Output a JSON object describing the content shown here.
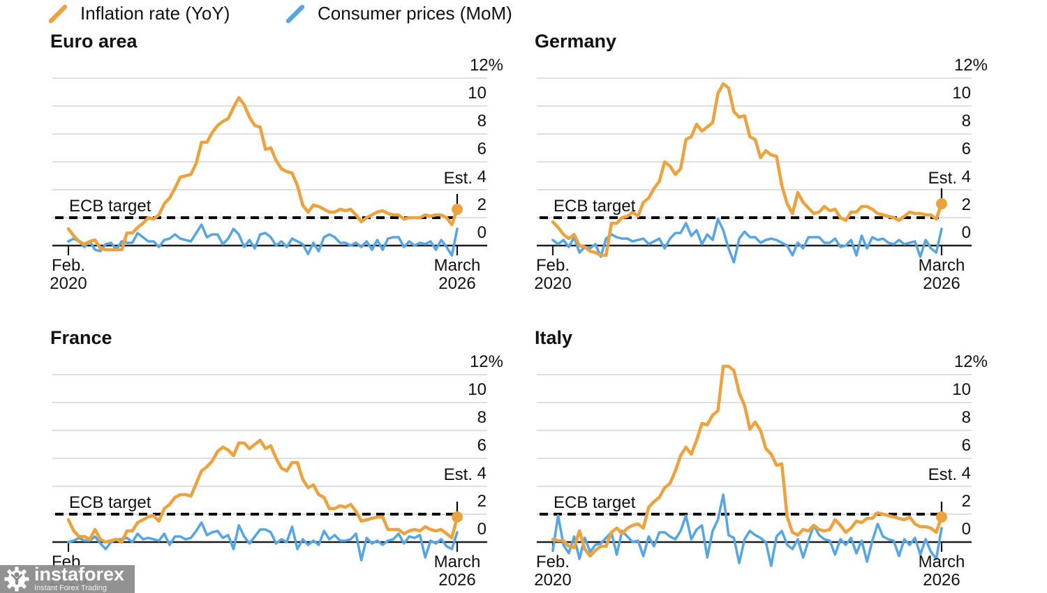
{
  "legend": {
    "items": [
      {
        "label": "Inflation rate (YoY)",
        "color": "#EBA33F"
      },
      {
        "label": "Consumer prices (MoM)",
        "color": "#57A6E1"
      }
    ]
  },
  "colors": {
    "inflation_yoy": "#EBA33F",
    "consumer_mom": "#57A6E1",
    "gridline": "#C9C9C9",
    "axis": "#1A1A1A",
    "target_dash": "#000000"
  },
  "axis": {
    "y_tick_labels": [
      "12%",
      "10",
      "8",
      "6",
      "4",
      "2",
      "0"
    ],
    "x_start_label": [
      "Feb.",
      "2020"
    ],
    "x_end_label": [
      "March",
      "2026"
    ],
    "target_label": "ECB target",
    "est_label": "Est."
  },
  "watermark": {
    "brand": "instaforex",
    "tagline": "Instant Forex Trading"
  },
  "chart_data": [
    {
      "type": "line",
      "id": "euro-area",
      "title": "Euro area",
      "x_range": [
        "Feb. 2020",
        "March 2026"
      ],
      "ylim": [
        0,
        12
      ],
      "grid": true,
      "target_value": 2,
      "estimate": {
        "label": "Est.",
        "value": 2.6
      },
      "series": [
        {
          "name": "Inflation rate (YoY)",
          "color": "#EBA33F",
          "values": [
            1.2,
            0.7,
            0.3,
            0.1,
            0.3,
            0.4,
            -0.2,
            -0.3,
            -0.3,
            -0.3,
            -0.3,
            0.9,
            0.9,
            1.3,
            1.6,
            2.0,
            1.9,
            2.2,
            3.0,
            3.4,
            4.1,
            4.9,
            5.0,
            5.1,
            5.9,
            7.4,
            7.4,
            8.1,
            8.6,
            8.9,
            9.1,
            9.9,
            10.6,
            10.1,
            9.2,
            8.6,
            8.5,
            6.9,
            7.0,
            6.1,
            5.5,
            5.3,
            5.2,
            4.3,
            2.9,
            2.4,
            2.9,
            2.8,
            2.6,
            2.4,
            2.4,
            2.6,
            2.5,
            2.6,
            2.2,
            1.7,
            2.0,
            2.2,
            2.4,
            2.5,
            2.3,
            2.2,
            2.2,
            1.9,
            2.0,
            2.0,
            2.0,
            2.2,
            2.1,
            2.2,
            2.2,
            2.0,
            1.5
          ]
        },
        {
          "name": "Consumer prices (MoM)",
          "color": "#57A6E1",
          "values": [
            0.3,
            0.5,
            0.3,
            -0.1,
            0.3,
            -0.3,
            -0.4,
            0.1,
            0.2,
            -0.3,
            0.3,
            0.2,
            0.2,
            0.9,
            0.6,
            0.3,
            0.3,
            -0.1,
            0.4,
            0.5,
            0.8,
            0.5,
            0.4,
            0.3,
            0.9,
            1.5,
            0.6,
            0.8,
            0.8,
            0.1,
            0.5,
            1.2,
            0.8,
            -0.1,
            0.4,
            -0.2,
            0.8,
            0.9,
            0.6,
            0.0,
            0.3,
            -0.1,
            0.5,
            0.3,
            0.1,
            -0.6,
            0.2,
            -0.4,
            0.6,
            0.8,
            0.6,
            0.2,
            0.2,
            0.0,
            0.2,
            -0.1,
            0.3,
            -0.3,
            0.4,
            -0.3,
            0.5,
            0.6,
            0.6,
            -0.1,
            0.3,
            0.0,
            0.2,
            0.1,
            0.3,
            -0.3,
            0.4,
            -0.1,
            -0.7,
            1.2
          ]
        }
      ]
    },
    {
      "type": "line",
      "id": "germany",
      "title": "Germany",
      "x_range": [
        "Feb. 2020",
        "March 2026"
      ],
      "ylim": [
        0,
        12
      ],
      "grid": true,
      "target_value": 2,
      "estimate": {
        "label": "Est.",
        "value": 3.0
      },
      "series": [
        {
          "name": "Inflation rate (YoY)",
          "color": "#EBA33F",
          "values": [
            1.7,
            1.3,
            0.8,
            0.5,
            0.8,
            0.0,
            -0.1,
            -0.4,
            -0.5,
            -0.7,
            -0.7,
            1.6,
            1.6,
            2.0,
            2.1,
            2.4,
            2.1,
            3.1,
            3.4,
            4.1,
            4.6,
            6.0,
            5.7,
            5.1,
            5.5,
            7.6,
            7.8,
            8.7,
            8.2,
            8.5,
            8.8,
            10.9,
            11.6,
            11.3,
            9.6,
            9.2,
            9.3,
            7.8,
            7.6,
            6.3,
            6.8,
            6.5,
            6.4,
            4.3,
            3.0,
            2.3,
            3.8,
            3.1,
            2.7,
            2.3,
            2.4,
            2.8,
            2.5,
            2.6,
            2.0,
            1.8,
            2.4,
            2.4,
            2.8,
            2.8,
            2.6,
            2.3,
            2.2,
            2.1,
            2.0,
            1.8,
            2.1,
            2.4,
            2.3,
            2.3,
            2.2,
            2.2,
            1.9
          ]
        },
        {
          "name": "Consumer prices (MoM)",
          "color": "#57A6E1",
          "values": [
            0.4,
            0.1,
            0.4,
            -0.1,
            0.6,
            -0.5,
            -0.1,
            -0.2,
            0.1,
            -0.8,
            0.5,
            0.8,
            0.6,
            0.5,
            0.5,
            0.3,
            0.4,
            0.5,
            0.1,
            0.3,
            0.5,
            -0.2,
            0.5,
            0.9,
            0.9,
            1.6,
            0.7,
            1.1,
            0.1,
            0.8,
            0.4,
            1.9,
            1.1,
            -0.2,
            -1.2,
            0.5,
            1.0,
            0.6,
            0.6,
            0.2,
            0.4,
            0.5,
            0.4,
            0.2,
            0.0,
            -0.7,
            0.2,
            -0.2,
            0.6,
            0.6,
            0.6,
            0.2,
            0.2,
            0.5,
            -0.1,
            0.0,
            0.4,
            -0.7,
            0.7,
            -0.2,
            0.6,
            0.4,
            0.5,
            0.2,
            0.1,
            0.4,
            0.1,
            0.2,
            0.3,
            -0.8,
            0.4,
            -0.2,
            -0.5,
            1.2
          ]
        }
      ]
    },
    {
      "type": "line",
      "id": "france",
      "title": "France",
      "x_range": [
        "Feb. 2020",
        "March 2026"
      ],
      "ylim": [
        0,
        12
      ],
      "grid": true,
      "target_value": 2,
      "estimate": {
        "label": "Est.",
        "value": 1.8
      },
      "series": [
        {
          "name": "Inflation rate (YoY)",
          "color": "#EBA33F",
          "values": [
            1.6,
            0.8,
            0.4,
            0.4,
            0.2,
            0.9,
            0.2,
            0.0,
            0.1,
            0.2,
            0.0,
            0.8,
            0.8,
            1.4,
            1.6,
            1.8,
            1.9,
            1.5,
            2.4,
            2.7,
            3.2,
            3.4,
            3.4,
            3.3,
            4.2,
            5.1,
            5.4,
            5.8,
            6.5,
            6.8,
            6.6,
            6.2,
            7.1,
            7.1,
            6.7,
            7.0,
            7.3,
            6.7,
            6.9,
            6.0,
            5.3,
            5.1,
            5.7,
            5.7,
            4.5,
            3.9,
            4.1,
            3.4,
            3.2,
            2.4,
            2.4,
            2.6,
            2.5,
            2.7,
            2.2,
            1.5,
            1.6,
            1.7,
            1.8,
            1.8,
            0.9,
            0.9,
            0.9,
            0.6,
            0.8,
            0.9,
            0.8,
            1.1,
            0.9,
            0.8,
            0.9,
            0.6,
            0.3
          ]
        },
        {
          "name": "Consumer prices (MoM)",
          "color": "#57A6E1",
          "values": [
            0.0,
            0.1,
            0.3,
            0.1,
            0.1,
            0.4,
            -0.1,
            -0.5,
            0.0,
            0.2,
            0.2,
            0.3,
            0.0,
            0.6,
            0.2,
            0.3,
            0.2,
            0.1,
            0.6,
            -0.2,
            0.4,
            0.4,
            0.2,
            0.3,
            0.8,
            1.4,
            0.5,
            0.7,
            0.8,
            0.3,
            0.5,
            -0.5,
            1.2,
            0.4,
            -0.1,
            0.4,
            0.9,
            0.9,
            0.7,
            -0.1,
            0.2,
            0.0,
            1.1,
            -0.5,
            0.2,
            -0.2,
            0.1,
            -0.2,
            0.8,
            0.2,
            0.5,
            0.1,
            0.1,
            0.2,
            0.6,
            -1.3,
            0.3,
            -0.1,
            0.1,
            -0.2,
            0.1,
            0.2,
            0.6,
            -0.1,
            0.4,
            0.3,
            0.5,
            -1.1,
            0.1,
            -0.1,
            0.2,
            -0.3,
            -0.5,
            0.7
          ]
        }
      ]
    },
    {
      "type": "line",
      "id": "italy",
      "title": "Italy",
      "x_range": [
        "Feb. 2020",
        "March 2026"
      ],
      "ylim": [
        0,
        12
      ],
      "grid": true,
      "target_value": 2,
      "estimate": {
        "label": "Est.",
        "value": 1.8
      },
      "series": [
        {
          "name": "Inflation rate (YoY)",
          "color": "#EBA33F",
          "values": [
            0.2,
            0.1,
            0.1,
            -0.3,
            -0.4,
            0.8,
            -0.5,
            -1.0,
            -0.6,
            -0.3,
            -0.3,
            0.7,
            1.0,
            0.6,
            1.0,
            1.2,
            1.3,
            1.0,
            2.5,
            2.9,
            3.2,
            3.9,
            4.2,
            5.1,
            6.2,
            6.8,
            6.3,
            7.3,
            8.5,
            8.4,
            9.1,
            9.4,
            12.6,
            12.6,
            12.3,
            10.7,
            9.8,
            8.1,
            8.6,
            8.0,
            6.7,
            6.3,
            5.5,
            5.6,
            1.8,
            0.7,
            0.5,
            0.9,
            0.8,
            1.2,
            0.9,
            0.8,
            0.9,
            1.6,
            1.2,
            0.7,
            1.0,
            1.5,
            1.4,
            1.7,
            1.7,
            2.1,
            2.0,
            1.9,
            1.8,
            1.7,
            1.6,
            1.8,
            1.3,
            1.1,
            1.1,
            1.0,
            0.7
          ]
        },
        {
          "name": "Consumer prices (MoM)",
          "color": "#57A6E1",
          "values": [
            -0.6,
            1.9,
            -0.2,
            -0.8,
            0.4,
            -1.2,
            0.3,
            -0.7,
            -0.2,
            -0.1,
            0.3,
            0.7,
            -0.9,
            0.8,
            0.4,
            0.0,
            0.1,
            -1.0,
            0.4,
            -0.3,
            0.7,
            0.7,
            0.4,
            0.2,
            0.8,
            1.9,
            0.2,
            0.9,
            1.2,
            -1.1,
            0.8,
            1.6,
            3.4,
            0.5,
            0.3,
            -1.5,
            0.2,
            0.8,
            0.5,
            0.3,
            0.0,
            -1.7,
            0.4,
            0.8,
            -0.2,
            -0.5,
            0.2,
            -1.1,
            0.1,
            1.2,
            0.5,
            0.2,
            0.1,
            -0.9,
            0.2,
            -0.2,
            0.3,
            -0.8,
            0.1,
            -1.4,
            0.1,
            1.3,
            0.4,
            0.2,
            0.1,
            -1.0,
            0.2,
            -0.2,
            0.3,
            -0.9,
            0.2,
            -0.7,
            -1.2,
            1.0
          ]
        }
      ]
    }
  ]
}
